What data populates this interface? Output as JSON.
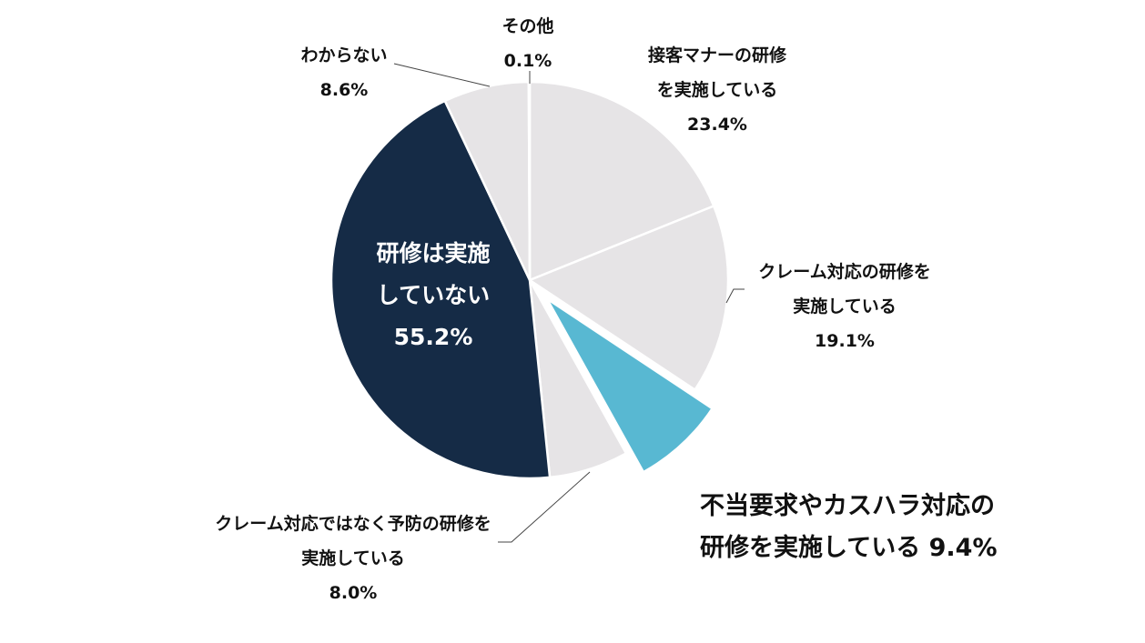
{
  "chart_data": {
    "type": "pie",
    "start_angle_deg": 0,
    "direction": "clockwise",
    "slices": [
      {
        "label_lines": [
          "接客マナーの研修",
          "を実施している"
        ],
        "value_text": "23.4%",
        "value": 23.4,
        "color": "#e6e4e6",
        "exploded": false
      },
      {
        "label_lines": [
          "クレーム対応の研修を",
          "実施している"
        ],
        "value_text": "19.1%",
        "value": 19.1,
        "color": "#e6e4e6",
        "exploded": false
      },
      {
        "label_lines": [
          "不当要求やカスハラ対応の",
          "研修を実施している"
        ],
        "value_text": "9.4%",
        "value": 9.4,
        "color": "#58b8d2",
        "exploded": true
      },
      {
        "label_lines": [
          "クレーム対応ではなく予防の研修を",
          "実施している"
        ],
        "value_text": "8.0%",
        "value": 8.0,
        "color": "#e6e4e6",
        "exploded": false
      },
      {
        "label_lines": [
          "研修は実施",
          "していない"
        ],
        "value_text": "55.2%",
        "value": 55.2,
        "color": "#152b46",
        "exploded": false
      },
      {
        "label_lines": [
          "わからない"
        ],
        "value_text": "8.6%",
        "value": 8.6,
        "color": "#e6e4e6",
        "exploded": false
      },
      {
        "label_lines": [
          "その他"
        ],
        "value_text": "0.1%",
        "value": 0.1,
        "color": "#e6e4e6",
        "exploded": false
      }
    ]
  }
}
